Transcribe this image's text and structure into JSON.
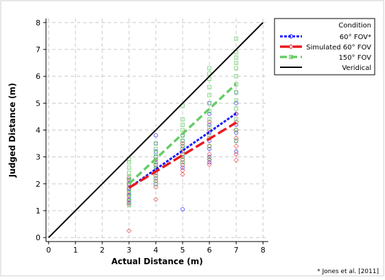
{
  "chart_data": {
    "type": "scatter",
    "title": "",
    "xlabel": "Actual Distance (m)",
    "ylabel": "Judged Distance (m)",
    "xlim": [
      -0.1,
      8.2
    ],
    "ylim": [
      -0.15,
      8.15
    ],
    "xticks": [
      0,
      1,
      2,
      3,
      4,
      5,
      6,
      7,
      8
    ],
    "yticks": [
      0,
      1,
      2,
      3,
      4,
      5,
      6,
      7,
      8
    ],
    "grid": true,
    "legend_position": "top-right-outside",
    "legend_title": "Condition",
    "footnote": "* Jones et al. [2011]",
    "series": [
      {
        "name": "60° FOV*",
        "color": "#1a1aff",
        "marker": "circle",
        "points": [
          [
            3,
            1.4
          ],
          [
            3,
            1.55
          ],
          [
            3,
            1.7
          ],
          [
            3,
            1.85
          ],
          [
            3,
            2.0
          ],
          [
            3,
            2.15
          ],
          [
            3,
            1.3
          ],
          [
            4,
            2.0
          ],
          [
            4,
            2.2
          ],
          [
            4,
            2.4
          ],
          [
            4,
            2.6
          ],
          [
            4,
            2.8
          ],
          [
            4,
            3.0
          ],
          [
            4,
            3.2
          ],
          [
            4,
            3.5
          ],
          [
            4,
            3.8
          ],
          [
            5,
            1.05
          ],
          [
            5,
            2.6
          ],
          [
            5,
            2.8
          ],
          [
            5,
            3.0
          ],
          [
            5,
            3.2
          ],
          [
            5,
            3.4
          ],
          [
            5,
            3.6
          ],
          [
            5,
            3.8
          ],
          [
            6,
            2.8
          ],
          [
            6,
            3.0
          ],
          [
            6,
            3.3
          ],
          [
            6,
            3.6
          ],
          [
            6,
            3.9
          ],
          [
            6,
            4.2
          ],
          [
            6,
            4.6
          ],
          [
            6,
            5.0
          ],
          [
            7,
            3.2
          ],
          [
            7,
            3.6
          ],
          [
            7,
            3.9
          ],
          [
            7,
            4.2
          ],
          [
            7,
            4.6
          ],
          [
            7,
            5.0
          ],
          [
            7,
            5.4
          ]
        ],
        "fit": {
          "x": [
            3,
            7
          ],
          "y": [
            1.85,
            4.62
          ]
        }
      },
      {
        "name": "Simulated 60° FOV",
        "color": "#e8191e",
        "marker": "diamond",
        "points": [
          [
            3,
            0.25
          ],
          [
            3,
            1.25
          ],
          [
            3,
            1.4
          ],
          [
            3,
            1.6
          ],
          [
            3,
            1.8
          ],
          [
            3,
            2.0
          ],
          [
            3,
            2.2
          ],
          [
            4,
            1.42
          ],
          [
            4,
            1.88
          ],
          [
            4,
            2.1
          ],
          [
            4,
            2.3
          ],
          [
            4,
            2.5
          ],
          [
            4,
            2.7
          ],
          [
            4,
            2.9
          ],
          [
            5,
            2.35
          ],
          [
            5,
            2.5
          ],
          [
            5,
            2.7
          ],
          [
            5,
            2.9
          ],
          [
            5,
            3.1
          ],
          [
            5,
            3.3
          ],
          [
            5,
            3.5
          ],
          [
            6,
            2.72
          ],
          [
            6,
            2.9
          ],
          [
            6,
            3.1
          ],
          [
            6,
            3.4
          ],
          [
            6,
            3.7
          ],
          [
            6,
            4.0
          ],
          [
            6,
            4.3
          ],
          [
            7,
            2.88
          ],
          [
            7,
            3.1
          ],
          [
            7,
            3.4
          ],
          [
            7,
            3.7
          ],
          [
            7,
            4.0
          ],
          [
            7,
            4.3
          ],
          [
            7,
            4.6
          ]
        ],
        "fit": {
          "x": [
            3,
            7
          ],
          "y": [
            1.85,
            4.28
          ]
        }
      },
      {
        "name": "150° FOV",
        "color": "#66cc66",
        "marker": "square",
        "points": [
          [
            3,
            1.2
          ],
          [
            3,
            1.35
          ],
          [
            3,
            1.5
          ],
          [
            3,
            1.65
          ],
          [
            3,
            1.8
          ],
          [
            3,
            1.95
          ],
          [
            3,
            2.1
          ],
          [
            3,
            2.25
          ],
          [
            3,
            2.4
          ],
          [
            3,
            2.6
          ],
          [
            3,
            2.8
          ],
          [
            3,
            2.92
          ],
          [
            4,
            2.0
          ],
          [
            4,
            2.2
          ],
          [
            4,
            2.4
          ],
          [
            4,
            2.55
          ],
          [
            4,
            2.7
          ],
          [
            4,
            2.85
          ],
          [
            4,
            3.0
          ],
          [
            4,
            3.15
          ],
          [
            4,
            3.3
          ],
          [
            4,
            3.5
          ],
          [
            5,
            2.8
          ],
          [
            5,
            3.0
          ],
          [
            5,
            3.2
          ],
          [
            5,
            3.4
          ],
          [
            5,
            3.6
          ],
          [
            5,
            3.8
          ],
          [
            5,
            4.0
          ],
          [
            5,
            4.2
          ],
          [
            5,
            4.4
          ],
          [
            5,
            4.9
          ],
          [
            6,
            2.95
          ],
          [
            6,
            3.4
          ],
          [
            6,
            3.8
          ],
          [
            6,
            4.1
          ],
          [
            6,
            4.4
          ],
          [
            6,
            4.7
          ],
          [
            6,
            5.0
          ],
          [
            6,
            5.3
          ],
          [
            6,
            5.6
          ],
          [
            6,
            5.9
          ],
          [
            6,
            6.1
          ],
          [
            6,
            6.3
          ],
          [
            7,
            3.6
          ],
          [
            7,
            4.0
          ],
          [
            7,
            4.4
          ],
          [
            7,
            4.8
          ],
          [
            7,
            5.1
          ],
          [
            7,
            5.4
          ],
          [
            7,
            5.7
          ],
          [
            7,
            6.0
          ],
          [
            7,
            6.3
          ],
          [
            7,
            6.5
          ],
          [
            7,
            6.7
          ],
          [
            7,
            6.9
          ],
          [
            7,
            7.4
          ]
        ],
        "fit": {
          "x": [
            3,
            7
          ],
          "y": [
            2.0,
            5.72
          ]
        }
      },
      {
        "name": "Veridical",
        "color": "#000000",
        "marker": "none",
        "points": [],
        "fit": {
          "x": [
            0,
            8
          ],
          "y": [
            0,
            8
          ]
        }
      }
    ]
  }
}
